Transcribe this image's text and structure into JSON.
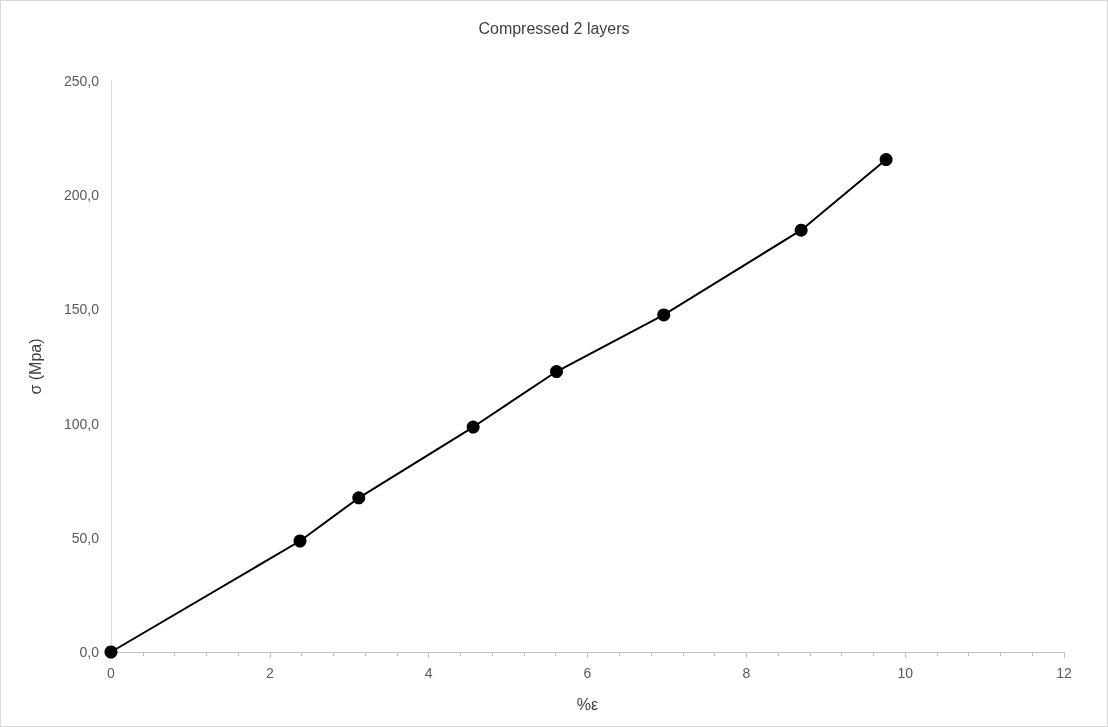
{
  "chart_data": {
    "type": "line",
    "title": "Compressed 2 layers",
    "xlabel": "%ε",
    "ylabel": "σ (Mpa)",
    "x": [
      0,
      2.38,
      3.12,
      4.56,
      5.61,
      6.96,
      8.69,
      9.76
    ],
    "series": [
      {
        "color": "#000000",
        "values": [
          0,
          48.6,
          67.5,
          98.5,
          122.8,
          147.6,
          184.7,
          215.6
        ]
      }
    ],
    "xlim": [
      0,
      12
    ],
    "xticks": [
      0,
      2,
      4,
      6,
      8,
      10,
      12
    ],
    "ylim": [
      0,
      250
    ],
    "yticks": [
      {
        "value": 0,
        "label": "0,0"
      },
      {
        "value": 50,
        "label": "50,0"
      },
      {
        "value": 100,
        "label": "100,0"
      },
      {
        "value": 150,
        "label": "150,0"
      },
      {
        "value": 200,
        "label": "200,0"
      },
      {
        "value": 250,
        "label": "250,0"
      }
    ],
    "grid": false,
    "marker": "circle",
    "line_style": "solid"
  }
}
